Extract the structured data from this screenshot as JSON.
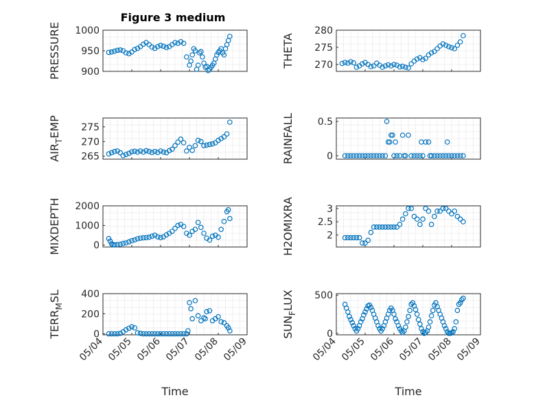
{
  "figure_title": "Figure 3 medium",
  "colors": {
    "marker": "#0072BD",
    "axis": "#262626",
    "grid": "#d9d9d9"
  },
  "chart_data": [
    {
      "type": "scatter",
      "ylabel": "PRESSURE",
      "ylim": [
        900,
        1000
      ],
      "yticks": [
        900,
        950,
        1000
      ],
      "xlim": [
        0,
        5
      ],
      "grid": true,
      "series": [
        {
          "x": [
            0.2,
            0.3,
            0.4,
            0.5,
            0.6,
            0.7,
            0.8,
            0.9,
            1.0,
            1.1,
            1.2,
            1.3,
            1.4,
            1.5,
            1.6,
            1.7,
            1.8,
            1.9,
            2.0,
            2.1,
            2.2,
            2.3,
            2.4,
            2.5,
            2.6,
            2.7,
            2.8,
            2.9,
            3.0,
            3.05,
            3.1,
            3.15,
            3.2,
            3.25,
            3.3,
            3.35,
            3.4,
            3.45,
            3.5,
            3.55,
            3.6,
            3.65,
            3.7,
            3.75,
            3.8,
            3.85,
            3.9,
            3.95,
            4.0,
            4.05,
            4.1,
            4.15,
            4.2,
            4.25,
            4.3,
            4.35,
            4.4
          ],
          "y": [
            946,
            947,
            949,
            951,
            952,
            950,
            945,
            943,
            947,
            953,
            956,
            960,
            966,
            970,
            965,
            959,
            956,
            960,
            963,
            961,
            958,
            960,
            965,
            970,
            968,
            972,
            968,
            935,
            915,
            925,
            940,
            955,
            950,
            905,
            915,
            945,
            948,
            935,
            920,
            910,
            912,
            902,
            905,
            910,
            915,
            920,
            930,
            940,
            946,
            950,
            955,
            945,
            940,
            955,
            965,
            975,
            985
          ]
        }
      ]
    },
    {
      "type": "scatter",
      "ylabel": "THETA",
      "ylim": [
        268,
        280
      ],
      "yticks": [
        270,
        275,
        280
      ],
      "xlim": [
        0,
        5
      ],
      "grid": true,
      "series": [
        {
          "x": [
            0.2,
            0.3,
            0.4,
            0.5,
            0.6,
            0.7,
            0.8,
            0.9,
            1.0,
            1.1,
            1.2,
            1.3,
            1.4,
            1.5,
            1.6,
            1.7,
            1.8,
            1.9,
            2.0,
            2.1,
            2.2,
            2.3,
            2.4,
            2.5,
            2.6,
            2.7,
            2.8,
            2.9,
            3.0,
            3.1,
            3.2,
            3.3,
            3.4,
            3.5,
            3.6,
            3.7,
            3.8,
            3.9,
            4.0,
            4.1,
            4.2,
            4.3,
            4.4
          ],
          "y": [
            270.3,
            270.6,
            270.4,
            270.8,
            270.5,
            269.2,
            269.6,
            270.2,
            270.6,
            270.0,
            269.4,
            269.6,
            270.4,
            269.8,
            269.2,
            269.6,
            269.9,
            269.6,
            270.0,
            269.8,
            269.3,
            269.5,
            269.2,
            269.0,
            270.2,
            271.0,
            271.6,
            272.0,
            271.4,
            271.8,
            272.8,
            273.4,
            273.8,
            274.6,
            275.4,
            276.0,
            275.6,
            275.2,
            274.9,
            274.6,
            275.6,
            276.6,
            278.4
          ]
        }
      ]
    },
    {
      "type": "scatter",
      "ylabel": "AIR_TEMP",
      "ylim": [
        264,
        278
      ],
      "yticks": [
        265,
        270,
        275
      ],
      "xlim": [
        0,
        5
      ],
      "grid": true,
      "series": [
        {
          "x": [
            0.2,
            0.3,
            0.4,
            0.5,
            0.6,
            0.7,
            0.8,
            0.9,
            1.0,
            1.1,
            1.2,
            1.3,
            1.4,
            1.5,
            1.6,
            1.7,
            1.8,
            1.9,
            2.0,
            2.1,
            2.2,
            2.3,
            2.4,
            2.5,
            2.6,
            2.7,
            2.8,
            2.9,
            3.0,
            3.1,
            3.2,
            3.3,
            3.4,
            3.5,
            3.6,
            3.7,
            3.8,
            3.9,
            4.0,
            4.1,
            4.2,
            4.3,
            4.4
          ],
          "y": [
            265.8,
            266.2,
            266.6,
            266.8,
            266.2,
            265.2,
            265.6,
            266.0,
            266.5,
            266.7,
            266.4,
            266.8,
            266.4,
            266.9,
            266.6,
            266.3,
            266.6,
            266.3,
            266.8,
            266.4,
            266.2,
            266.9,
            267.4,
            268.6,
            269.8,
            270.8,
            269.6,
            266.8,
            268.0,
            267.0,
            268.6,
            270.4,
            270.0,
            268.6,
            268.8,
            269.0,
            269.2,
            269.6,
            270.4,
            271.0,
            271.6,
            272.6,
            276.6
          ]
        }
      ]
    },
    {
      "type": "scatter",
      "ylabel": "RAINFALL",
      "ylim": [
        -0.05,
        0.55
      ],
      "yticks": [
        0,
        0.5
      ],
      "xlim": [
        0,
        5
      ],
      "grid": true,
      "series": [
        {
          "x": [
            0.3,
            0.4,
            0.5,
            0.6,
            0.7,
            0.8,
            0.9,
            1.0,
            1.1,
            1.2,
            1.3,
            1.4,
            1.5,
            1.6,
            1.7,
            1.75,
            1.8,
            1.85,
            1.9,
            1.95,
            2.0,
            2.05,
            2.1,
            2.2,
            2.3,
            2.35,
            2.4,
            2.5,
            2.6,
            2.7,
            2.8,
            2.9,
            2.95,
            3.0,
            3.1,
            3.2,
            3.25,
            3.3,
            3.4,
            3.5,
            3.6,
            3.7,
            3.8,
            3.85,
            3.9,
            4.0,
            4.1,
            4.2,
            4.3,
            4.4
          ],
          "y": [
            0,
            0,
            0,
            0,
            0,
            0,
            0,
            0,
            0,
            0,
            0,
            0,
            0,
            0,
            0,
            0.5,
            0.2,
            0.2,
            0.3,
            0.3,
            0,
            0.2,
            0,
            0,
            0.3,
            0,
            0,
            0.3,
            0,
            0,
            0,
            0,
            0.2,
            0,
            0.2,
            0.2,
            0,
            0,
            0,
            0,
            0,
            0,
            0,
            0.2,
            0,
            0,
            0,
            0,
            0,
            0
          ]
        }
      ]
    },
    {
      "type": "scatter",
      "ylabel": "MIXDEPTH",
      "ylim": [
        -100,
        2000
      ],
      "yticks": [
        0,
        1000,
        2000
      ],
      "xlim": [
        0,
        5
      ],
      "grid": true,
      "series": [
        {
          "x": [
            0.2,
            0.25,
            0.3,
            0.35,
            0.4,
            0.5,
            0.6,
            0.7,
            0.8,
            0.9,
            1.0,
            1.1,
            1.2,
            1.3,
            1.4,
            1.5,
            1.6,
            1.7,
            1.8,
            1.9,
            2.0,
            2.1,
            2.2,
            2.3,
            2.4,
            2.5,
            2.6,
            2.7,
            2.8,
            2.9,
            3.0,
            3.1,
            3.2,
            3.3,
            3.4,
            3.5,
            3.6,
            3.7,
            3.8,
            3.9,
            4.0,
            4.1,
            4.2,
            4.3,
            4.35,
            4.4
          ],
          "y": [
            330,
            200,
            60,
            20,
            10,
            20,
            40,
            80,
            110,
            160,
            220,
            260,
            320,
            350,
            370,
            380,
            400,
            450,
            500,
            420,
            380,
            420,
            520,
            600,
            700,
            850,
            1000,
            1050,
            950,
            600,
            500,
            700,
            800,
            1150,
            900,
            600,
            350,
            250,
            450,
            500,
            400,
            800,
            1200,
            1700,
            1800,
            1350
          ]
        }
      ]
    },
    {
      "type": "scatter",
      "ylabel": "H2OMIXRA",
      "ylim": [
        1.55,
        3.1
      ],
      "yticks": [
        2,
        2.5,
        3
      ],
      "xlim": [
        0,
        5
      ],
      "grid": true,
      "series": [
        {
          "x": [
            0.3,
            0.4,
            0.5,
            0.6,
            0.7,
            0.8,
            0.9,
            1.0,
            1.1,
            1.2,
            1.3,
            1.4,
            1.5,
            1.6,
            1.7,
            1.8,
            1.9,
            2.0,
            2.1,
            2.2,
            2.3,
            2.4,
            2.5,
            2.6,
            2.7,
            2.8,
            2.9,
            3.0,
            3.1,
            3.2,
            3.3,
            3.4,
            3.5,
            3.6,
            3.7,
            3.8,
            3.9,
            4.0,
            4.1,
            4.2,
            4.3,
            4.4
          ],
          "y": [
            1.9,
            1.9,
            1.9,
            1.9,
            1.9,
            1.9,
            1.7,
            1.7,
            1.8,
            2.1,
            2.3,
            2.3,
            2.3,
            2.3,
            2.3,
            2.3,
            2.3,
            2.3,
            2.3,
            2.4,
            2.6,
            2.8,
            3.0,
            3.0,
            2.7,
            2.6,
            2.4,
            2.6,
            3.0,
            2.9,
            2.4,
            2.7,
            2.9,
            2.9,
            3.0,
            3.0,
            2.9,
            2.8,
            2.9,
            2.7,
            2.6,
            2.5
          ]
        }
      ]
    },
    {
      "type": "scatter",
      "ylabel": "TERR_MSL",
      "ylim": [
        -10,
        400
      ],
      "yticks": [
        0,
        200,
        400
      ],
      "xlim": [
        0,
        5
      ],
      "xticks": [
        0,
        1,
        2,
        3,
        4,
        5
      ],
      "xticklabels": [
        "05/04",
        "05/05",
        "05/06",
        "05/07",
        "05/08",
        "05/09"
      ],
      "xlabel": "Time",
      "grid": true,
      "series": [
        {
          "x": [
            0.2,
            0.3,
            0.4,
            0.5,
            0.6,
            0.7,
            0.8,
            0.9,
            1.0,
            1.1,
            1.2,
            1.3,
            1.4,
            1.5,
            1.6,
            1.7,
            1.8,
            1.9,
            2.0,
            2.1,
            2.2,
            2.3,
            2.4,
            2.5,
            2.6,
            2.7,
            2.8,
            2.9,
            2.95,
            3.0,
            3.05,
            3.1,
            3.2,
            3.3,
            3.4,
            3.5,
            3.55,
            3.6,
            3.7,
            3.8,
            3.9,
            4.0,
            4.1,
            4.2,
            4.3,
            4.35,
            4.4
          ],
          "y": [
            0,
            0,
            0,
            0,
            5,
            20,
            40,
            55,
            70,
            60,
            10,
            5,
            0,
            0,
            0,
            0,
            0,
            0,
            0,
            0,
            0,
            0,
            0,
            0,
            0,
            0,
            0,
            0,
            30,
            310,
            250,
            150,
            330,
            180,
            130,
            160,
            150,
            220,
            230,
            130,
            150,
            170,
            120,
            110,
            80,
            60,
            30
          ]
        }
      ]
    },
    {
      "type": "scatter",
      "ylabel": "SUN_FLUX",
      "ylim": [
        -20,
        520
      ],
      "yticks": [
        0,
        500
      ],
      "xlim": [
        0,
        5
      ],
      "xticks": [
        0,
        1,
        2,
        3,
        4,
        5
      ],
      "xticklabels": [
        "05/04",
        "05/05",
        "05/06",
        "05/07",
        "05/08",
        "05/09"
      ],
      "xlabel": "Time",
      "grid": true,
      "series": [
        {
          "x": [
            0.3,
            0.35,
            0.4,
            0.45,
            0.5,
            0.55,
            0.6,
            0.65,
            0.7,
            0.75,
            0.8,
            0.85,
            0.9,
            0.95,
            1.0,
            1.05,
            1.1,
            1.15,
            1.2,
            1.25,
            1.3,
            1.35,
            1.4,
            1.45,
            1.5,
            1.55,
            1.6,
            1.65,
            1.7,
            1.75,
            1.8,
            1.85,
            1.9,
            1.95,
            2.0,
            2.05,
            2.1,
            2.15,
            2.2,
            2.25,
            2.3,
            2.35,
            2.4,
            2.45,
            2.5,
            2.55,
            2.6,
            2.65,
            2.7,
            2.75,
            2.8,
            2.85,
            2.9,
            2.95,
            3.0,
            3.05,
            3.1,
            3.15,
            3.2,
            3.25,
            3.3,
            3.35,
            3.4,
            3.45,
            3.5,
            3.55,
            3.6,
            3.65,
            3.7,
            3.75,
            3.8,
            3.85,
            3.9,
            3.95,
            4.0,
            4.05,
            4.1,
            4.15,
            4.2,
            4.25,
            4.3,
            4.35,
            4.4
          ],
          "y": [
            380,
            330,
            280,
            220,
            180,
            140,
            100,
            60,
            30,
            60,
            100,
            150,
            190,
            240,
            280,
            320,
            360,
            370,
            340,
            300,
            250,
            200,
            150,
            100,
            60,
            30,
            60,
            100,
            150,
            200,
            250,
            300,
            330,
            300,
            250,
            190,
            150,
            100,
            60,
            30,
            10,
            30,
            80,
            150,
            220,
            300,
            380,
            400,
            360,
            310,
            250,
            180,
            120,
            60,
            20,
            0,
            10,
            30,
            80,
            150,
            230,
            300,
            370,
            400,
            350,
            300,
            250,
            200,
            150,
            100,
            60,
            20,
            0,
            0,
            5,
            20,
            60,
            150,
            300,
            380,
            400,
            440,
            460
          ]
        }
      ]
    }
  ]
}
